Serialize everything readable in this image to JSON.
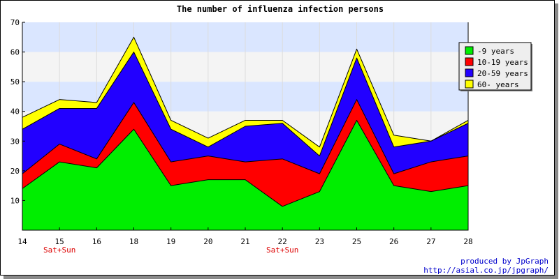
{
  "chart_data": {
    "type": "area",
    "stacked": true,
    "title": "The number of influenza infection persons",
    "xlabel": "",
    "ylabel": "",
    "categories": [
      "14",
      "15",
      "16",
      "18",
      "19",
      "20",
      "21",
      "22",
      "23",
      "25",
      "26",
      "27",
      "28"
    ],
    "category_notes": [
      {
        "category": "15",
        "text": "Sat+Sun"
      },
      {
        "category": "22",
        "text": "Sat+Sun"
      }
    ],
    "ylim": [
      0,
      70
    ],
    "yticks": [
      "10",
      "20",
      "30",
      "40",
      "50",
      "60",
      "70"
    ],
    "legend_position": "right",
    "series": [
      {
        "name": "-9 years",
        "color": "#00ee00",
        "values": [
          14,
          23,
          21,
          34,
          15,
          17,
          17,
          8,
          13,
          37,
          15,
          13,
          15
        ]
      },
      {
        "name": "10-19 years",
        "color": "#ff0000",
        "values": [
          5,
          6,
          3,
          9,
          8,
          8,
          6,
          16,
          6,
          7,
          4,
          10,
          10
        ]
      },
      {
        "name": "20-59 years",
        "color": "#2200ff",
        "values": [
          15,
          12,
          17,
          17,
          11,
          3,
          12,
          12,
          6,
          14,
          9,
          7,
          11
        ]
      },
      {
        "name": "60- years",
        "color": "#ffff00",
        "values": [
          4,
          3,
          2,
          5,
          3,
          3,
          2,
          1,
          3,
          3,
          4,
          0,
          1
        ]
      }
    ],
    "bands": [
      {
        "from": 0,
        "to": 30,
        "color": "#ffffff"
      },
      {
        "from": 30,
        "to": 40,
        "color": "#f4f4f4"
      },
      {
        "from": 40,
        "to": 50,
        "color": "#dae6ff"
      },
      {
        "from": 50,
        "to": 60,
        "color": "#f4f4f4"
      },
      {
        "from": 60,
        "to": 70,
        "color": "#dae6ff"
      }
    ]
  },
  "footer": {
    "credit": "produced by JpGraph",
    "url": "http://asial.co.jp/jpgraph/"
  }
}
